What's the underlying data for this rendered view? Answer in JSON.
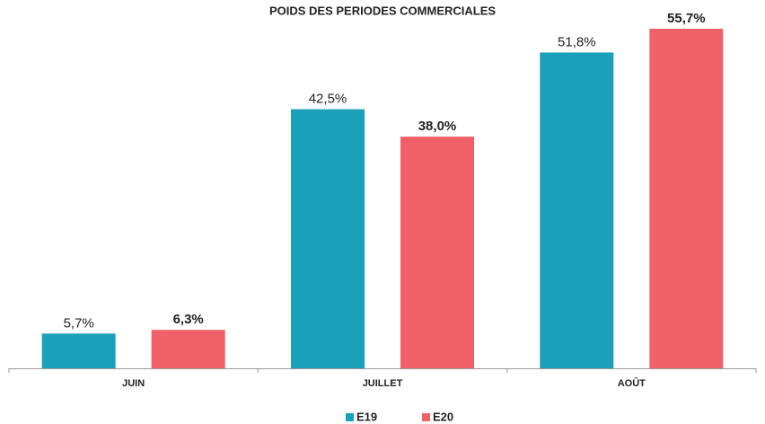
{
  "chart_data": {
    "type": "bar",
    "title": "POIDS DES PERIODES COMMERCIALES",
    "categories": [
      "JUIN",
      "JUILLET",
      "AOÛT"
    ],
    "series": [
      {
        "name": "E19",
        "color": "#1aa0b8",
        "values": [
          5.7,
          42.5,
          51.8
        ],
        "value_labels": [
          "5,7%",
          "42,5%",
          "51,8%"
        ]
      },
      {
        "name": "E20",
        "color": "#f06068",
        "values": [
          6.3,
          38.0,
          55.7
        ],
        "value_labels": [
          "6,3%",
          "38,0%",
          "55,7%"
        ]
      }
    ]
  }
}
